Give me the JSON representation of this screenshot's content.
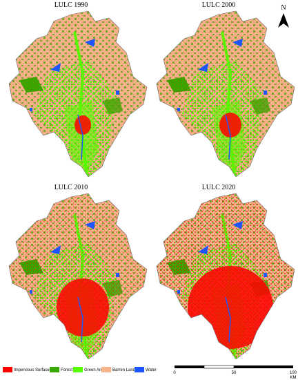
{
  "panels": [
    {
      "title": "LULC 1990"
    },
    {
      "title": "LULC 2000"
    },
    {
      "title": "LULC 2010"
    },
    {
      "title": "LULC 2020"
    }
  ],
  "north_arrow": "N",
  "legend": [
    {
      "label": "Impervious Surface",
      "color": "#ff0000"
    },
    {
      "label": "Forest",
      "color": "#38a800"
    },
    {
      "label": "Green Area",
      "color": "#55ff00"
    },
    {
      "label": "Barren Land",
      "color": "#f5b48c"
    },
    {
      "label": "Water",
      "color": "#1f55ff"
    }
  ],
  "scale_bar": {
    "labels": [
      "0",
      "50",
      "100"
    ],
    "unit": "KM"
  }
}
